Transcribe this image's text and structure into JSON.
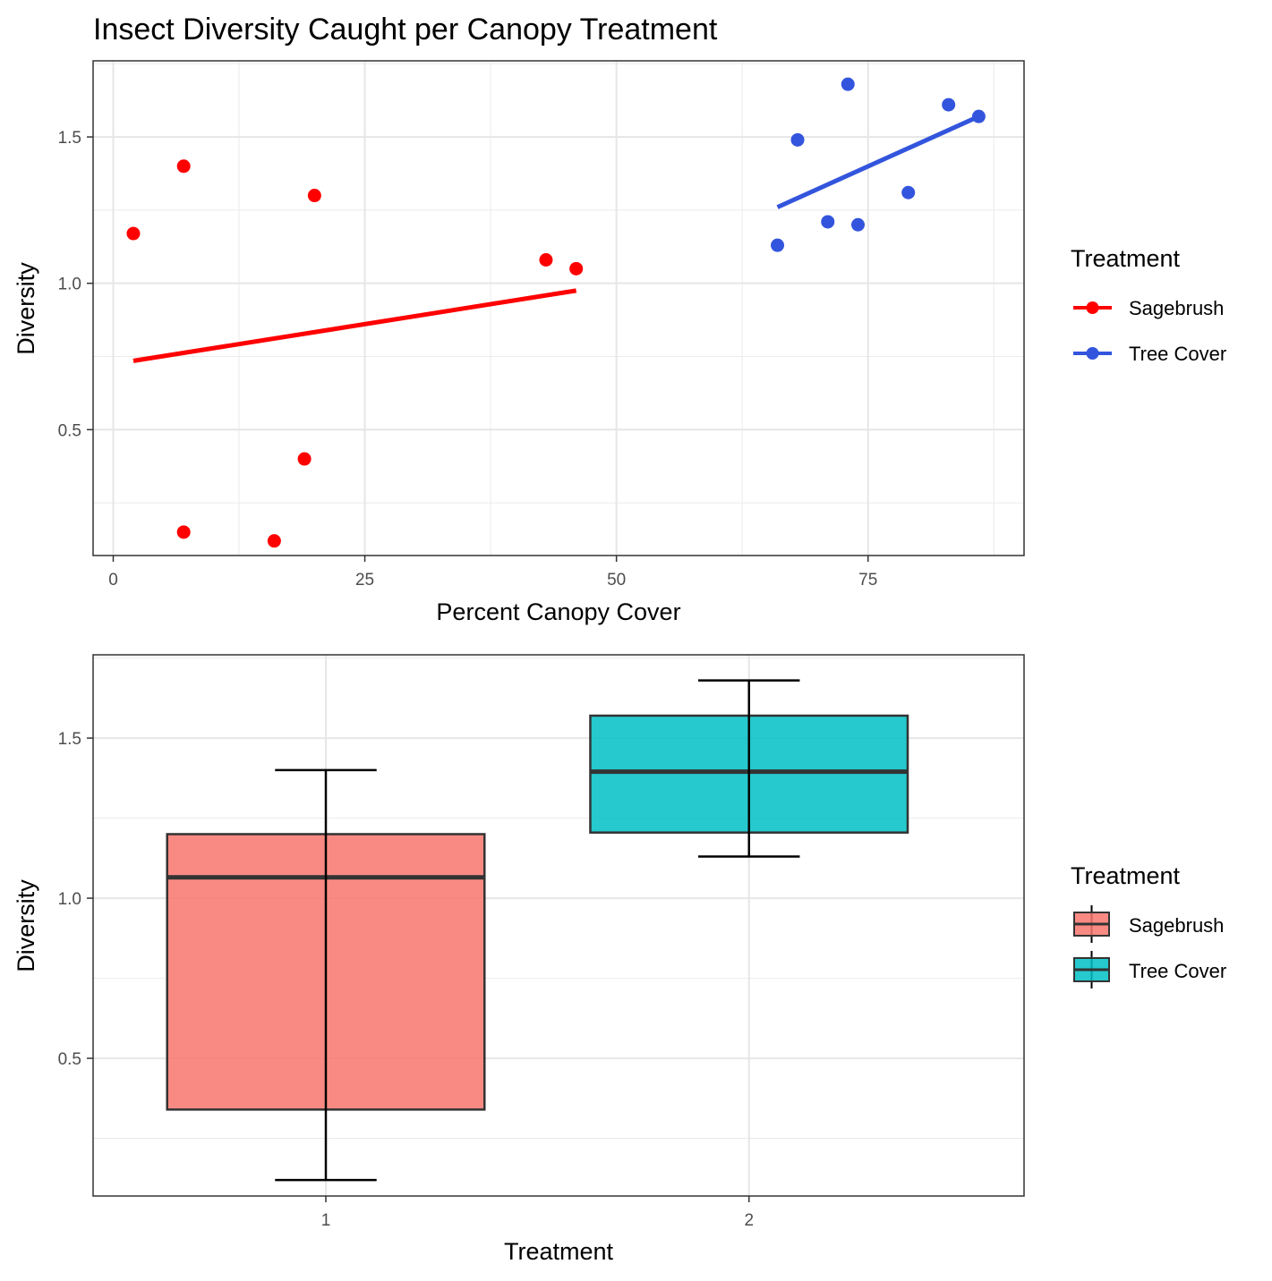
{
  "chart_data": [
    {
      "type": "scatter",
      "title": "Insect Diversity Caught per Canopy Treatment",
      "xlabel": "Percent Canopy Cover",
      "ylabel": "Diversity",
      "xlim": [
        -2,
        90.5
      ],
      "ylim": [
        0.07,
        1.76
      ],
      "x_ticks": [
        0,
        25,
        50,
        75
      ],
      "y_ticks": [
        0.5,
        1.0,
        1.5
      ],
      "x_tick_labels": [
        "0",
        "25",
        "50",
        "75"
      ],
      "y_tick_labels": [
        "0.5",
        "1.0",
        "1.5"
      ],
      "grid": true,
      "legend": {
        "title": "Treatment",
        "position": "right"
      },
      "series": [
        {
          "name": "Sagebrush",
          "color": "#ff0000",
          "points": [
            {
              "x": 2,
              "y": 1.17
            },
            {
              "x": 7,
              "y": 1.4
            },
            {
              "x": 7,
              "y": 0.15
            },
            {
              "x": 16,
              "y": 0.12
            },
            {
              "x": 19,
              "y": 0.4
            },
            {
              "x": 20,
              "y": 1.3
            },
            {
              "x": 43,
              "y": 1.08
            },
            {
              "x": 46,
              "y": 1.05
            }
          ],
          "fit": {
            "x": [
              2,
              46
            ],
            "y": [
              0.735,
              0.975
            ]
          }
        },
        {
          "name": "Tree Cover",
          "color": "#3355dd",
          "points": [
            {
              "x": 66,
              "y": 1.13
            },
            {
              "x": 68,
              "y": 1.49
            },
            {
              "x": 71,
              "y": 1.21
            },
            {
              "x": 73,
              "y": 1.68
            },
            {
              "x": 74,
              "y": 1.2
            },
            {
              "x": 79,
              "y": 1.31
            },
            {
              "x": 83,
              "y": 1.61
            },
            {
              "x": 86,
              "y": 1.57
            }
          ],
          "fit": {
            "x": [
              66,
              86
            ],
            "y": [
              1.26,
              1.57
            ]
          }
        }
      ]
    },
    {
      "type": "box",
      "xlabel": "Treatment",
      "ylabel": "Diversity",
      "categories": [
        "1",
        "2"
      ],
      "xlim": [
        0.45,
        2.65
      ],
      "ylim": [
        0.07,
        1.76
      ],
      "y_ticks": [
        0.5,
        1.0,
        1.5
      ],
      "y_tick_labels": [
        "0.5",
        "1.0",
        "1.5"
      ],
      "grid": true,
      "legend": {
        "title": "Treatment",
        "position": "right"
      },
      "series": [
        {
          "name": "Sagebrush",
          "color": "#f8766d",
          "min": 0.12,
          "q1": 0.34,
          "median": 1.065,
          "q3": 1.2,
          "max": 1.4
        },
        {
          "name": "Tree Cover",
          "color": "#00bfc4",
          "min": 1.13,
          "q1": 1.205,
          "median": 1.395,
          "q3": 1.57,
          "max": 1.68
        }
      ]
    }
  ]
}
